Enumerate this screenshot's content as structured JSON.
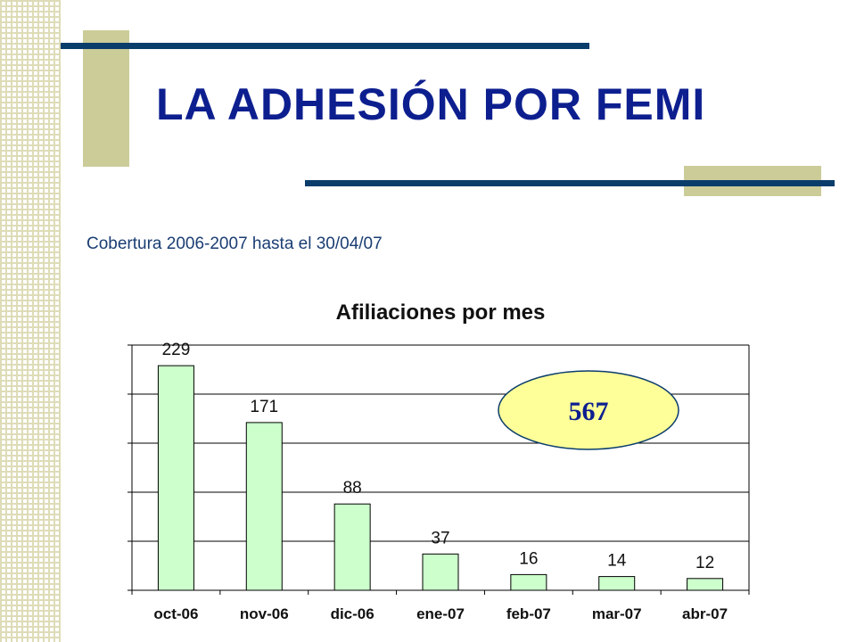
{
  "slide": {
    "title": "LA ADHESIÓN POR FEMI",
    "subtitle": "Cobertura 2006-2007  hasta el 30/04/07"
  },
  "colors": {
    "title": "#0d1f8f",
    "navy_line": "#0b3d6b",
    "khaki": "#cccc99",
    "bar_fill": "#ccffcc",
    "ellipse_fill": "#ffff99"
  },
  "chart_data": {
    "type": "bar",
    "title": "Afiliaciones por mes",
    "xlabel": "",
    "ylabel": "",
    "categories": [
      "oct-06",
      "nov-06",
      "dic-06",
      "ene-07",
      "feb-07",
      "mar-07",
      "abr-07"
    ],
    "values": [
      229,
      171,
      88,
      37,
      16,
      14,
      12
    ],
    "ylim": [
      0,
      250
    ],
    "grid": true,
    "legend": "none",
    "annotation": {
      "text": "567"
    }
  }
}
